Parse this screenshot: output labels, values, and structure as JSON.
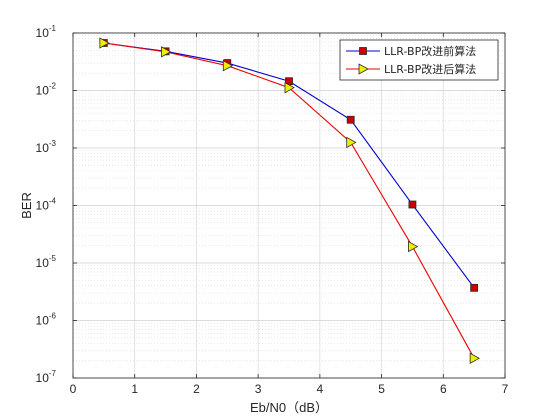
{
  "chart_data": {
    "type": "line",
    "title": "",
    "xlabel": "Eb/N0（dB）",
    "ylabel": "BER",
    "xlim": [
      0,
      7
    ],
    "ylim": [
      1e-07,
      0.1
    ],
    "yscale": "log",
    "x_ticks": [
      "0",
      "1",
      "2",
      "3",
      "4",
      "5",
      "6",
      "7"
    ],
    "y_tick_base": "10",
    "y_tick_exponents": [
      "-1",
      "-2",
      "-3",
      "-4",
      "-5",
      "-6",
      "-7"
    ],
    "grid": true,
    "minor_grid": true,
    "legend_position": "top-right",
    "x": [
      0.5,
      1.5,
      2.5,
      3.5,
      4.5,
      5.5,
      6.5
    ],
    "series": [
      {
        "name": "LLR-BP改进前算法",
        "values": [
          0.067,
          0.048,
          0.03,
          0.0145,
          0.0031,
          0.000104,
          3.7e-06
        ],
        "line_color": "#0000cc",
        "marker": "square",
        "marker_fill": "#cc0000"
      },
      {
        "name": "LLR-BP改进后算法",
        "values": [
          0.067,
          0.047,
          0.027,
          0.0112,
          0.00125,
          1.93e-05,
          2.2e-07
        ],
        "line_color": "#ee0000",
        "marker": "triangle-right",
        "marker_fill": "#eeee00"
      }
    ]
  }
}
